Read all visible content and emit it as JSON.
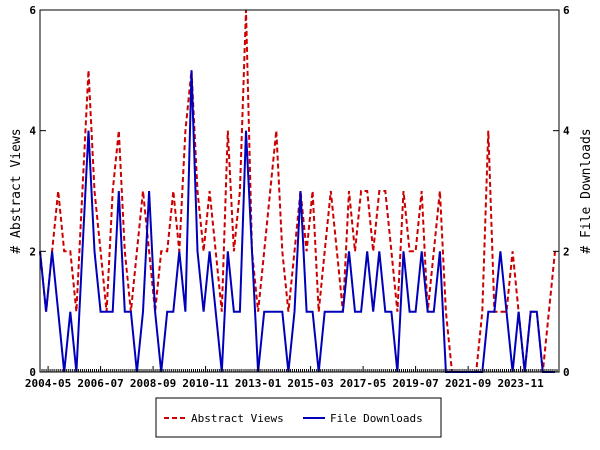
{
  "chart_data": {
    "type": "line",
    "title": "",
    "xlabel": "",
    "x_range": [
      "2004-01",
      "2025-06"
    ],
    "x_ticks": [
      "2004-05",
      "2006-07",
      "2008-09",
      "2010-11",
      "2013-01",
      "2015-03",
      "2017-05",
      "2019-07",
      "2021-09",
      "2023-11"
    ],
    "y_left": {
      "label": "# Abstract Views",
      "range": [
        0,
        6
      ],
      "ticks": [
        "0",
        "2",
        "4",
        "6"
      ]
    },
    "y_right": {
      "label": "# File Downloads",
      "range": [
        0,
        6
      ],
      "ticks": [
        "0",
        "2",
        "4",
        "6"
      ]
    },
    "grid": false,
    "legend_position": "bottom-center",
    "series": [
      {
        "name": "Abstract Views",
        "color": "#cc0000",
        "line_style": "dashed",
        "axis": "left",
        "x": [
          "2004-01",
          "2004-04",
          "2004-07",
          "2004-10",
          "2005-01",
          "2005-04",
          "2005-07",
          "2005-10",
          "2006-01",
          "2006-04",
          "2006-07",
          "2006-10",
          "2007-01",
          "2007-04",
          "2007-07",
          "2007-10",
          "2008-01",
          "2008-04",
          "2008-07",
          "2008-10",
          "2009-01",
          "2009-04",
          "2009-07",
          "2009-10",
          "2010-01",
          "2010-04",
          "2010-07",
          "2010-10",
          "2011-01",
          "2011-04",
          "2011-07",
          "2011-10",
          "2012-01",
          "2012-04",
          "2012-07",
          "2012-10",
          "2013-01",
          "2013-04",
          "2013-07",
          "2013-10",
          "2014-01",
          "2014-04",
          "2014-07",
          "2014-10",
          "2015-01",
          "2015-04",
          "2015-07",
          "2015-10",
          "2016-01",
          "2016-04",
          "2016-07",
          "2016-10",
          "2017-01",
          "2017-04",
          "2017-07",
          "2017-10",
          "2018-01",
          "2018-04",
          "2018-07",
          "2018-10",
          "2019-01",
          "2019-04",
          "2019-07",
          "2019-10",
          "2020-01",
          "2020-04",
          "2020-07",
          "2020-10",
          "2021-01",
          "2021-04",
          "2021-07",
          "2021-10",
          "2022-01",
          "2022-04",
          "2022-07",
          "2022-10",
          "2023-01",
          "2023-04",
          "2023-07",
          "2023-10",
          "2024-01",
          "2024-04",
          "2024-07",
          "2024-10",
          "2025-01",
          "2025-04"
        ],
        "values": [
          2,
          1,
          2,
          3,
          2,
          2,
          1,
          3,
          5,
          3,
          2,
          1,
          3,
          4,
          2,
          1,
          2,
          3,
          2,
          1,
          2,
          2,
          3,
          2,
          4,
          5,
          3,
          2,
          3,
          2,
          1,
          4,
          2,
          3,
          6,
          2,
          1,
          2,
          3,
          4,
          2,
          1,
          2,
          3,
          2,
          3,
          1,
          2,
          3,
          2,
          1,
          3,
          2,
          3,
          3,
          2,
          3,
          3,
          2,
          1,
          3,
          2,
          2,
          3,
          1,
          2,
          3,
          1,
          0,
          0,
          0,
          0,
          0,
          1,
          4,
          1,
          1,
          1,
          2,
          1,
          0,
          1,
          1,
          0,
          1,
          2
        ]
      },
      {
        "name": "File Downloads",
        "color": "#0000bb",
        "line_style": "solid",
        "axis": "right",
        "x": [
          "2004-01",
          "2004-04",
          "2004-07",
          "2004-10",
          "2005-01",
          "2005-04",
          "2005-07",
          "2005-10",
          "2006-01",
          "2006-04",
          "2006-07",
          "2006-10",
          "2007-01",
          "2007-04",
          "2007-07",
          "2007-10",
          "2008-01",
          "2008-04",
          "2008-07",
          "2008-10",
          "2009-01",
          "2009-04",
          "2009-07",
          "2009-10",
          "2010-01",
          "2010-04",
          "2010-07",
          "2010-10",
          "2011-01",
          "2011-04",
          "2011-07",
          "2011-10",
          "2012-01",
          "2012-04",
          "2012-07",
          "2012-10",
          "2013-01",
          "2013-04",
          "2013-07",
          "2013-10",
          "2014-01",
          "2014-04",
          "2014-07",
          "2014-10",
          "2015-01",
          "2015-04",
          "2015-07",
          "2015-10",
          "2016-01",
          "2016-04",
          "2016-07",
          "2016-10",
          "2017-01",
          "2017-04",
          "2017-07",
          "2017-10",
          "2018-01",
          "2018-04",
          "2018-07",
          "2018-10",
          "2019-01",
          "2019-04",
          "2019-07",
          "2019-10",
          "2020-01",
          "2020-04",
          "2020-07",
          "2020-10",
          "2021-01",
          "2021-04",
          "2021-07",
          "2021-10",
          "2022-01",
          "2022-04",
          "2022-07",
          "2022-10",
          "2023-01",
          "2023-04",
          "2023-07",
          "2023-10",
          "2024-01",
          "2024-04",
          "2024-07",
          "2024-10",
          "2025-01",
          "2025-04"
        ],
        "values": [
          2,
          1,
          2,
          1,
          0,
          1,
          0,
          2,
          4,
          2,
          1,
          1,
          1,
          3,
          1,
          1,
          0,
          1,
          3,
          1,
          0,
          1,
          1,
          2,
          1,
          5,
          2,
          1,
          2,
          1,
          0,
          2,
          1,
          1,
          4,
          2,
          0,
          1,
          1,
          1,
          1,
          0,
          1,
          3,
          1,
          1,
          0,
          1,
          1,
          1,
          1,
          2,
          1,
          1,
          2,
          1,
          2,
          1,
          1,
          0,
          2,
          1,
          1,
          2,
          1,
          1,
          2,
          0,
          0,
          0,
          0,
          0,
          0,
          0,
          1,
          1,
          2,
          1,
          0,
          1,
          0,
          1,
          1,
          0,
          0,
          0
        ]
      }
    ]
  }
}
